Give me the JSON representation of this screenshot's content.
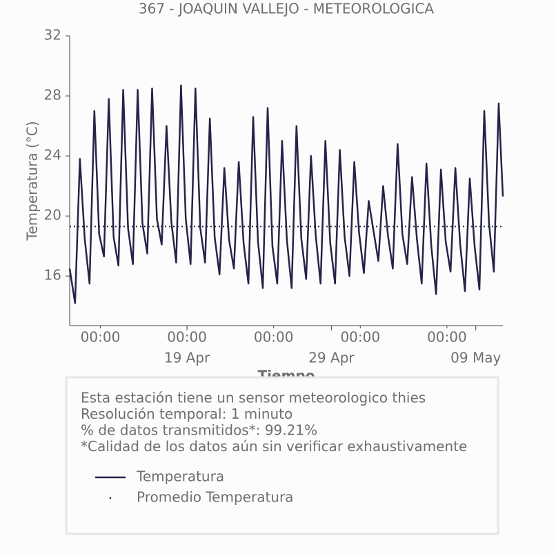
{
  "chart_data": {
    "type": "line",
    "title": "367 - JOAQUIN VALLEJO - METEOROLOGICA",
    "xlabel": "Tiempo",
    "ylabel": "Temperatura (°C)",
    "x": [
      "04-10 21:00",
      "04-11 06:00",
      "04-11 14:00",
      "04-11 22:00",
      "04-12 06:00",
      "04-12 14:00",
      "04-12 22:00",
      "04-13 06:00",
      "04-13 14:00",
      "04-13 22:00",
      "04-14 06:00",
      "04-14 14:00",
      "04-14 22:00",
      "04-15 06:00",
      "04-15 14:00",
      "04-15 22:00",
      "04-16 06:00",
      "04-16 14:00",
      "04-16 22:00",
      "04-17 06:00",
      "04-17 14:00",
      "04-17 22:00",
      "04-18 06:00",
      "04-18 14:00",
      "04-18 22:00",
      "04-19 06:00",
      "04-19 14:00",
      "04-19 22:00",
      "04-20 06:00",
      "04-20 14:00",
      "04-20 22:00",
      "04-21 06:00",
      "04-21 14:00",
      "04-21 22:00",
      "04-22 06:00",
      "04-22 14:00",
      "04-22 22:00",
      "04-23 06:00",
      "04-23 14:00",
      "04-23 22:00",
      "04-24 06:00",
      "04-24 14:00",
      "04-24 22:00",
      "04-25 06:00",
      "04-25 14:00",
      "04-25 22:00",
      "04-26 06:00",
      "04-26 14:00",
      "04-26 22:00",
      "04-27 06:00",
      "04-27 14:00",
      "04-27 22:00",
      "04-28 06:00",
      "04-28 14:00",
      "04-28 22:00",
      "04-29 06:00",
      "04-29 14:00",
      "04-29 22:00",
      "04-30 06:00",
      "04-30 14:00",
      "04-30 22:00",
      "05-01 06:00",
      "05-01 14:00",
      "05-01 22:00",
      "05-02 06:00",
      "05-02 14:00",
      "05-02 22:00",
      "05-03 06:00",
      "05-03 14:00",
      "05-03 22:00",
      "05-04 06:00",
      "05-04 14:00",
      "05-04 22:00",
      "05-05 06:00",
      "05-05 14:00",
      "05-05 22:00",
      "05-06 06:00",
      "05-06 14:00",
      "05-06 22:00",
      "05-07 06:00",
      "05-07 14:00",
      "05-07 22:00",
      "05-08 06:00",
      "05-08 14:00",
      "05-08 22:00",
      "05-09 06:00",
      "05-09 14:00",
      "05-09 22:00",
      "05-10 06:00",
      "05-10 14:00",
      "05-10 21:00"
    ],
    "series": [
      {
        "name": "Temperatura",
        "color": "#24244a",
        "values": [
          16.5,
          14.2,
          23.8,
          18.5,
          15.5,
          27,
          18.8,
          17.3,
          27.8,
          18.6,
          16.7,
          28.4,
          19.2,
          16.8,
          28.4,
          19.5,
          17.5,
          28.5,
          19.8,
          18.1,
          26,
          19.6,
          16.9,
          28.7,
          19.8,
          16.8,
          28.5,
          19.2,
          16.9,
          26.5,
          18.6,
          16.1,
          23.2,
          18.4,
          16.5,
          23.6,
          18.2,
          15.5,
          26.6,
          18.3,
          15.2,
          27.2,
          18,
          15.5,
          25,
          18.4,
          15.2,
          26,
          18.5,
          15.8,
          24,
          18.7,
          15.5,
          25,
          18.2,
          15.5,
          24.4,
          18.6,
          16,
          23.6,
          18.9,
          16.2,
          21,
          19,
          17,
          22,
          18.7,
          16.5,
          24.8,
          18.8,
          16.8,
          22.6,
          18.5,
          15.5,
          23.5,
          18,
          14.8,
          23.1,
          18.3,
          16.3,
          23.2,
          18.1,
          15,
          22.5,
          18,
          15.1,
          27,
          19.5,
          16.3,
          27.5,
          21.3
        ]
      }
    ],
    "mean_line": {
      "name": "Promedio Temperatura",
      "value": 19.3,
      "color": "#24244a"
    },
    "xlim": [
      "04-10 21:00",
      "05-10 21:00"
    ],
    "xticks": [
      {
        "value": "04-13 00:00",
        "label": "00:00"
      },
      {
        "value": "04-19 00:00",
        "label": "00:00"
      },
      {
        "value": "04-25 00:00",
        "label": "00:00"
      },
      {
        "value": "05-01 00:00",
        "label": "00:00"
      },
      {
        "value": "05-07 00:00",
        "label": "00:00"
      }
    ],
    "xticks_major": [
      {
        "value": "04-19 00:00",
        "label": "19 Apr"
      },
      {
        "value": "04-29 00:00",
        "label": "29 Apr"
      },
      {
        "value": "05-09 00:00",
        "label": "09 May"
      }
    ],
    "ylim": [
      12.7,
      32
    ],
    "yticks": [
      16,
      20,
      24,
      28,
      32
    ],
    "info": [
      "Esta estación tiene un sensor meteorologico thies",
      "Resolución temporal: 1 minuto",
      "% de datos transmitidos*: 99.21%",
      "*Calidad de los datos aún sin verificar exhaustivamente"
    ]
  }
}
